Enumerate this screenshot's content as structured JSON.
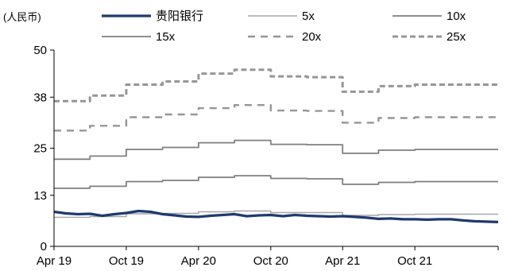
{
  "chart_data": {
    "type": "line",
    "unit_label": "(人民币)",
    "colors": {
      "stock": "#1f3a6e",
      "band_light": "#a6a6a6",
      "band_mid": "#7f7f7f",
      "band_dash": "#969696",
      "axis": "#000000"
    },
    "y_axis": {
      "ticks": [
        0,
        13,
        25,
        38,
        50
      ],
      "tick_labels": [
        "0",
        "13",
        "25",
        "38",
        "50"
      ],
      "ylim": [
        0,
        50
      ]
    },
    "x_axis": {
      "range": [
        "2019-04-01",
        "2022-04-30"
      ],
      "ticks": [
        {
          "date": "2019-04-01",
          "label": "Apr 19"
        },
        {
          "date": "2019-10-01",
          "label": "Oct 19"
        },
        {
          "date": "2020-04-01",
          "label": "Apr 20"
        },
        {
          "date": "2020-10-01",
          "label": "Oct 20"
        },
        {
          "date": "2021-04-01",
          "label": "Apr 21"
        },
        {
          "date": "2021-10-01",
          "label": "Oct 21"
        }
      ]
    },
    "legend": [
      {
        "label": "贵阳银行",
        "style": "stock"
      },
      {
        "label": "5x",
        "style": "band_light"
      },
      {
        "label": "10x",
        "style": "band_mid"
      },
      {
        "label": "15x",
        "style": "band_mid"
      },
      {
        "label": "20x",
        "style": "dash_short"
      },
      {
        "label": "25x",
        "style": "dash_long"
      }
    ],
    "series": [
      {
        "name": "贵阳银行",
        "style": "stock",
        "points": [
          [
            "2019-04-01",
            8.8
          ],
          [
            "2019-05-01",
            8.4
          ],
          [
            "2019-06-01",
            8.2
          ],
          [
            "2019-07-01",
            8.3
          ],
          [
            "2019-08-01",
            7.8
          ],
          [
            "2019-09-01",
            8.2
          ],
          [
            "2019-10-01",
            8.5
          ],
          [
            "2019-11-01",
            9.0
          ],
          [
            "2019-12-01",
            8.8
          ],
          [
            "2020-01-01",
            8.2
          ],
          [
            "2020-02-01",
            7.9
          ],
          [
            "2020-03-01",
            7.6
          ],
          [
            "2020-04-01",
            7.5
          ],
          [
            "2020-05-01",
            7.8
          ],
          [
            "2020-06-01",
            8.0
          ],
          [
            "2020-07-01",
            8.2
          ],
          [
            "2020-08-01",
            7.7
          ],
          [
            "2020-09-01",
            7.9
          ],
          [
            "2020-10-01",
            8.0
          ],
          [
            "2020-11-01",
            7.7
          ],
          [
            "2020-12-01",
            8.0
          ],
          [
            "2021-01-01",
            7.8
          ],
          [
            "2021-02-01",
            7.7
          ],
          [
            "2021-03-01",
            7.6
          ],
          [
            "2021-04-01",
            7.7
          ],
          [
            "2021-05-01",
            7.5
          ],
          [
            "2021-06-01",
            7.3
          ],
          [
            "2021-07-01",
            7.0
          ],
          [
            "2021-08-01",
            7.1
          ],
          [
            "2021-09-01",
            6.9
          ],
          [
            "2021-10-01",
            6.9
          ],
          [
            "2021-11-01",
            6.8
          ],
          [
            "2021-12-01",
            6.9
          ],
          [
            "2022-01-01",
            6.9
          ],
          [
            "2022-02-01",
            6.6
          ],
          [
            "2022-03-01",
            6.4
          ],
          [
            "2022-04-30",
            6.2
          ]
        ]
      },
      {
        "name": "5x",
        "style": "band_light",
        "points": [
          [
            "2019-04-01",
            7.4
          ],
          [
            "2019-07-01",
            7.6
          ],
          [
            "2019-10-01",
            8.3
          ],
          [
            "2020-01-01",
            8.4
          ],
          [
            "2020-04-01",
            8.8
          ],
          [
            "2020-07-01",
            9.0
          ],
          [
            "2020-10-01",
            8.6
          ],
          [
            "2021-01-01",
            8.6
          ],
          [
            "2021-04-01",
            7.9
          ],
          [
            "2021-07-01",
            8.1
          ],
          [
            "2021-10-01",
            8.2
          ],
          [
            "2022-04-30",
            8.2
          ]
        ]
      },
      {
        "name": "10x",
        "style": "band_mid",
        "points": [
          [
            "2019-04-01",
            14.8
          ],
          [
            "2019-07-01",
            15.3
          ],
          [
            "2019-10-01",
            16.5
          ],
          [
            "2020-01-01",
            16.8
          ],
          [
            "2020-04-01",
            17.6
          ],
          [
            "2020-07-01",
            18.0
          ],
          [
            "2020-10-01",
            17.3
          ],
          [
            "2021-01-01",
            17.2
          ],
          [
            "2021-04-01",
            15.8
          ],
          [
            "2021-07-01",
            16.3
          ],
          [
            "2021-10-01",
            16.5
          ],
          [
            "2022-04-30",
            16.5
          ]
        ]
      },
      {
        "name": "15x",
        "style": "band_mid",
        "points": [
          [
            "2019-04-01",
            22.2
          ],
          [
            "2019-07-01",
            23.0
          ],
          [
            "2019-10-01",
            24.7
          ],
          [
            "2020-01-01",
            25.2
          ],
          [
            "2020-04-01",
            26.4
          ],
          [
            "2020-07-01",
            27.0
          ],
          [
            "2020-10-01",
            26.0
          ],
          [
            "2021-01-01",
            25.9
          ],
          [
            "2021-04-01",
            23.7
          ],
          [
            "2021-07-01",
            24.5
          ],
          [
            "2021-10-01",
            24.7
          ],
          [
            "2022-04-30",
            24.7
          ]
        ]
      },
      {
        "name": "20x",
        "style": "dash_short",
        "points": [
          [
            "2019-04-01",
            29.5
          ],
          [
            "2019-07-01",
            30.7
          ],
          [
            "2019-10-01",
            32.9
          ],
          [
            "2020-01-01",
            33.6
          ],
          [
            "2020-04-01",
            35.2
          ],
          [
            "2020-07-01",
            36.0
          ],
          [
            "2020-10-01",
            34.6
          ],
          [
            "2021-01-01",
            34.5
          ],
          [
            "2021-04-01",
            31.5
          ],
          [
            "2021-07-01",
            32.7
          ],
          [
            "2021-10-01",
            32.9
          ],
          [
            "2022-04-30",
            32.9
          ]
        ]
      },
      {
        "name": "25x",
        "style": "dash_long",
        "points": [
          [
            "2019-04-01",
            37.0
          ],
          [
            "2019-07-01",
            38.4
          ],
          [
            "2019-10-01",
            41.2
          ],
          [
            "2020-01-01",
            42.0
          ],
          [
            "2020-04-01",
            44.0
          ],
          [
            "2020-07-01",
            45.0
          ],
          [
            "2020-10-01",
            43.3
          ],
          [
            "2021-01-01",
            43.1
          ],
          [
            "2021-04-01",
            39.4
          ],
          [
            "2021-07-01",
            40.8
          ],
          [
            "2021-10-01",
            41.2
          ],
          [
            "2022-04-30",
            41.2
          ]
        ]
      }
    ]
  }
}
